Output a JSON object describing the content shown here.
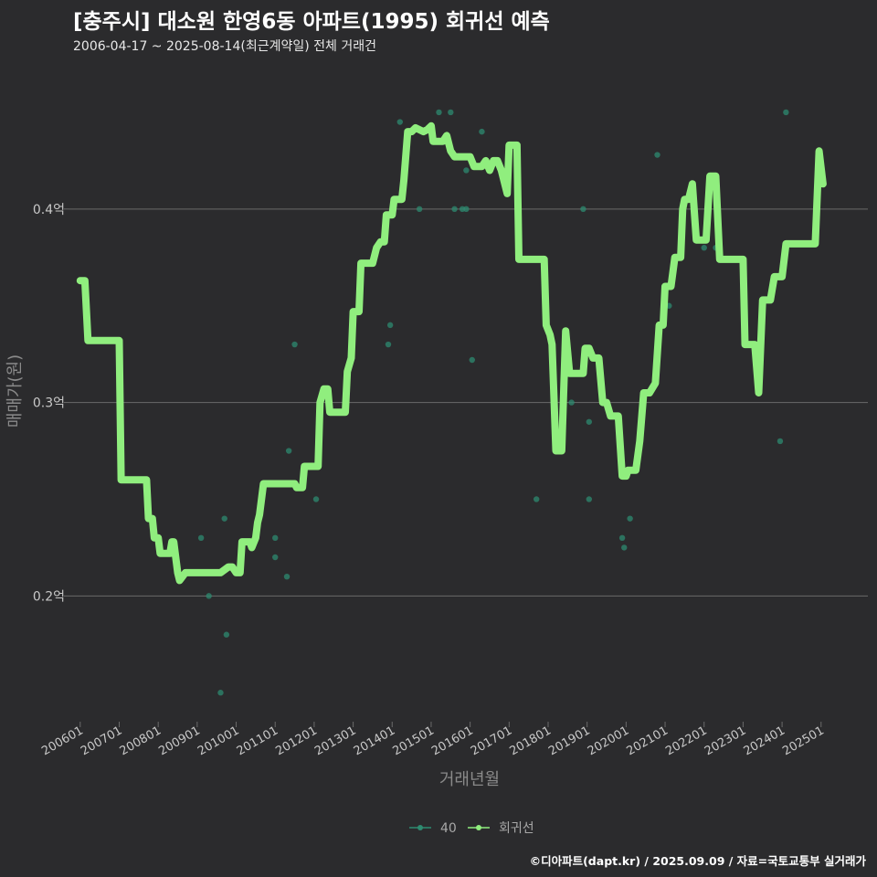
{
  "header": {
    "title": "[충주시] 대소원 한영6동 아파트(1995) 회귀선 예측",
    "subtitle": "2006-04-17 ~ 2025-08-14(최근계약일) 전체 거래건"
  },
  "footer": {
    "text": "©디아파트(dapt.kr) / 2025.09.09 / 자료=국토교통부 실거래가"
  },
  "colors": {
    "background": "#2b2b2d",
    "grid": "#6a6a6a",
    "regression": "#90ee7e",
    "points": "#2e8b70"
  },
  "chart_data": {
    "type": "line",
    "title": "[충주시] 대소원 한영6동 아파트(1995) 회귀선 예측",
    "xlabel": "거래년월",
    "ylabel": "매매가(원)",
    "ylim": [
      0.135,
      0.475
    ],
    "xlim": [
      2005.7,
      2026.2
    ],
    "y_ticks": [
      {
        "value": 0.2,
        "label": "0.2억"
      },
      {
        "value": 0.3,
        "label": "0.3억"
      },
      {
        "value": 0.4,
        "label": "0.4억"
      }
    ],
    "x_ticks": [
      {
        "value": 2006.0,
        "label": "200601"
      },
      {
        "value": 2007.0,
        "label": "200701"
      },
      {
        "value": 2008.0,
        "label": "200801"
      },
      {
        "value": 2009.0,
        "label": "200901"
      },
      {
        "value": 2010.0,
        "label": "201001"
      },
      {
        "value": 2011.0,
        "label": "201101"
      },
      {
        "value": 2012.0,
        "label": "201201"
      },
      {
        "value": 2013.0,
        "label": "201301"
      },
      {
        "value": 2014.0,
        "label": "201401"
      },
      {
        "value": 2015.0,
        "label": "201501"
      },
      {
        "value": 2016.0,
        "label": "201601"
      },
      {
        "value": 2017.0,
        "label": "201701"
      },
      {
        "value": 2018.0,
        "label": "201801"
      },
      {
        "value": 2019.0,
        "label": "201901"
      },
      {
        "value": 2020.0,
        "label": "202001"
      },
      {
        "value": 2021.0,
        "label": "202101"
      },
      {
        "value": 2022.0,
        "label": "202201"
      },
      {
        "value": 2023.0,
        "label": "202301"
      },
      {
        "value": 2024.0,
        "label": "202401"
      },
      {
        "value": 2025.0,
        "label": "202501"
      }
    ],
    "legend": [
      {
        "name": "40",
        "kind": "points"
      },
      {
        "name": "회귀선",
        "kind": "regression"
      }
    ],
    "legend_position": "bottom",
    "series": [
      {
        "name": "40",
        "kind": "scatter",
        "points": [
          [
            2009.1,
            0.23
          ],
          [
            2009.3,
            0.2
          ],
          [
            2009.6,
            0.15
          ],
          [
            2009.7,
            0.24
          ],
          [
            2009.75,
            0.18
          ],
          [
            2011.0,
            0.23
          ],
          [
            2011.0,
            0.22
          ],
          [
            2011.3,
            0.21
          ],
          [
            2011.35,
            0.275
          ],
          [
            2011.5,
            0.33
          ],
          [
            2012.05,
            0.25
          ],
          [
            2014.2,
            0.445
          ],
          [
            2014.7,
            0.4
          ],
          [
            2015.2,
            0.45
          ],
          [
            2015.5,
            0.45
          ],
          [
            2015.6,
            0.4
          ],
          [
            2015.8,
            0.4
          ],
          [
            2015.9,
            0.4
          ],
          [
            2015.9,
            0.42
          ],
          [
            2016.05,
            0.322
          ],
          [
            2016.3,
            0.44
          ],
          [
            2017.7,
            0.25
          ],
          [
            2018.6,
            0.3
          ],
          [
            2018.9,
            0.4
          ],
          [
            2019.05,
            0.29
          ],
          [
            2019.05,
            0.25
          ],
          [
            2019.5,
            0.3
          ],
          [
            2019.9,
            0.23
          ],
          [
            2019.95,
            0.225
          ],
          [
            2020.1,
            0.24
          ],
          [
            2020.4,
            0.295
          ],
          [
            2020.8,
            0.428
          ],
          [
            2021.0,
            0.35
          ],
          [
            2021.1,
            0.35
          ],
          [
            2022.0,
            0.38
          ],
          [
            2022.3,
            0.38
          ],
          [
            2023.95,
            0.28
          ],
          [
            2024.1,
            0.45
          ],
          [
            2013.95,
            0.34
          ],
          [
            2013.9,
            0.33
          ]
        ]
      },
      {
        "name": "회귀선",
        "kind": "line",
        "points": [
          [
            2006.0,
            0.363
          ],
          [
            2006.12,
            0.363
          ],
          [
            2006.2,
            0.332
          ],
          [
            2006.5,
            0.332
          ],
          [
            2007.0,
            0.332
          ],
          [
            2007.05,
            0.26
          ],
          [
            2007.3,
            0.26
          ],
          [
            2007.7,
            0.26
          ],
          [
            2007.75,
            0.24
          ],
          [
            2007.85,
            0.24
          ],
          [
            2007.9,
            0.23
          ],
          [
            2008.0,
            0.23
          ],
          [
            2008.05,
            0.222
          ],
          [
            2008.3,
            0.222
          ],
          [
            2008.35,
            0.228
          ],
          [
            2008.4,
            0.228
          ],
          [
            2008.5,
            0.212
          ],
          [
            2008.55,
            0.208
          ],
          [
            2008.7,
            0.212
          ],
          [
            2008.8,
            0.212
          ],
          [
            2009.0,
            0.212
          ],
          [
            2009.5,
            0.212
          ],
          [
            2009.6,
            0.212
          ],
          [
            2009.8,
            0.215
          ],
          [
            2009.9,
            0.215
          ],
          [
            2010.0,
            0.212
          ],
          [
            2010.1,
            0.212
          ],
          [
            2010.15,
            0.228
          ],
          [
            2010.35,
            0.228
          ],
          [
            2010.4,
            0.225
          ],
          [
            2010.5,
            0.23
          ],
          [
            2010.55,
            0.238
          ],
          [
            2010.6,
            0.242
          ],
          [
            2010.7,
            0.258
          ],
          [
            2011.0,
            0.258
          ],
          [
            2011.1,
            0.258
          ],
          [
            2011.5,
            0.258
          ],
          [
            2011.55,
            0.256
          ],
          [
            2011.7,
            0.256
          ],
          [
            2011.75,
            0.267
          ],
          [
            2012.0,
            0.267
          ],
          [
            2012.1,
            0.267
          ],
          [
            2012.15,
            0.3
          ],
          [
            2012.25,
            0.307
          ],
          [
            2012.35,
            0.307
          ],
          [
            2012.4,
            0.295
          ],
          [
            2012.5,
            0.295
          ],
          [
            2012.8,
            0.295
          ],
          [
            2012.85,
            0.316
          ],
          [
            2012.95,
            0.323
          ],
          [
            2013.0,
            0.347
          ],
          [
            2013.15,
            0.347
          ],
          [
            2013.2,
            0.372
          ],
          [
            2013.5,
            0.372
          ],
          [
            2013.6,
            0.38
          ],
          [
            2013.7,
            0.383
          ],
          [
            2013.8,
            0.383
          ],
          [
            2013.85,
            0.397
          ],
          [
            2014.0,
            0.397
          ],
          [
            2014.05,
            0.405
          ],
          [
            2014.25,
            0.405
          ],
          [
            2014.3,
            0.415
          ],
          [
            2014.4,
            0.44
          ],
          [
            2014.5,
            0.44
          ],
          [
            2014.6,
            0.442
          ],
          [
            2014.8,
            0.44
          ],
          [
            2014.9,
            0.441
          ],
          [
            2015.0,
            0.443
          ],
          [
            2015.05,
            0.435
          ],
          [
            2015.3,
            0.435
          ],
          [
            2015.4,
            0.438
          ],
          [
            2015.5,
            0.43
          ],
          [
            2015.6,
            0.427
          ],
          [
            2016.0,
            0.427
          ],
          [
            2016.1,
            0.422
          ],
          [
            2016.3,
            0.422
          ],
          [
            2016.4,
            0.425
          ],
          [
            2016.5,
            0.42
          ],
          [
            2016.6,
            0.425
          ],
          [
            2016.7,
            0.425
          ],
          [
            2016.8,
            0.42
          ],
          [
            2016.95,
            0.408
          ],
          [
            2017.0,
            0.433
          ],
          [
            2017.1,
            0.433
          ],
          [
            2017.2,
            0.433
          ],
          [
            2017.25,
            0.374
          ],
          [
            2017.5,
            0.374
          ],
          [
            2017.9,
            0.374
          ],
          [
            2017.95,
            0.34
          ],
          [
            2018.05,
            0.335
          ],
          [
            2018.1,
            0.33
          ],
          [
            2018.2,
            0.275
          ],
          [
            2018.35,
            0.275
          ],
          [
            2018.45,
            0.337
          ],
          [
            2018.55,
            0.315
          ],
          [
            2018.65,
            0.315
          ],
          [
            2018.9,
            0.315
          ],
          [
            2018.95,
            0.328
          ],
          [
            2019.05,
            0.328
          ],
          [
            2019.15,
            0.323
          ],
          [
            2019.3,
            0.323
          ],
          [
            2019.4,
            0.3
          ],
          [
            2019.5,
            0.3
          ],
          [
            2019.6,
            0.293
          ],
          [
            2019.7,
            0.293
          ],
          [
            2019.8,
            0.293
          ],
          [
            2019.9,
            0.262
          ],
          [
            2020.0,
            0.262
          ],
          [
            2020.05,
            0.265
          ],
          [
            2020.25,
            0.265
          ],
          [
            2020.35,
            0.28
          ],
          [
            2020.45,
            0.305
          ],
          [
            2020.6,
            0.305
          ],
          [
            2020.75,
            0.31
          ],
          [
            2020.85,
            0.34
          ],
          [
            2020.95,
            0.34
          ],
          [
            2021.0,
            0.36
          ],
          [
            2021.15,
            0.36
          ],
          [
            2021.25,
            0.375
          ],
          [
            2021.4,
            0.375
          ],
          [
            2021.45,
            0.4
          ],
          [
            2021.5,
            0.405
          ],
          [
            2021.6,
            0.405
          ],
          [
            2021.7,
            0.413
          ],
          [
            2021.8,
            0.384
          ],
          [
            2021.95,
            0.384
          ],
          [
            2022.05,
            0.384
          ],
          [
            2022.15,
            0.417
          ],
          [
            2022.3,
            0.417
          ],
          [
            2022.4,
            0.374
          ],
          [
            2022.6,
            0.374
          ],
          [
            2022.9,
            0.374
          ],
          [
            2023.0,
            0.374
          ],
          [
            2023.05,
            0.33
          ],
          [
            2023.2,
            0.33
          ],
          [
            2023.3,
            0.33
          ],
          [
            2023.4,
            0.305
          ],
          [
            2023.5,
            0.353
          ],
          [
            2023.7,
            0.353
          ],
          [
            2023.8,
            0.365
          ],
          [
            2024.0,
            0.365
          ],
          [
            2024.1,
            0.382
          ],
          [
            2024.3,
            0.382
          ],
          [
            2024.5,
            0.382
          ],
          [
            2024.7,
            0.382
          ],
          [
            2024.85,
            0.382
          ],
          [
            2024.95,
            0.43
          ],
          [
            2025.05,
            0.413
          ]
        ]
      }
    ]
  }
}
